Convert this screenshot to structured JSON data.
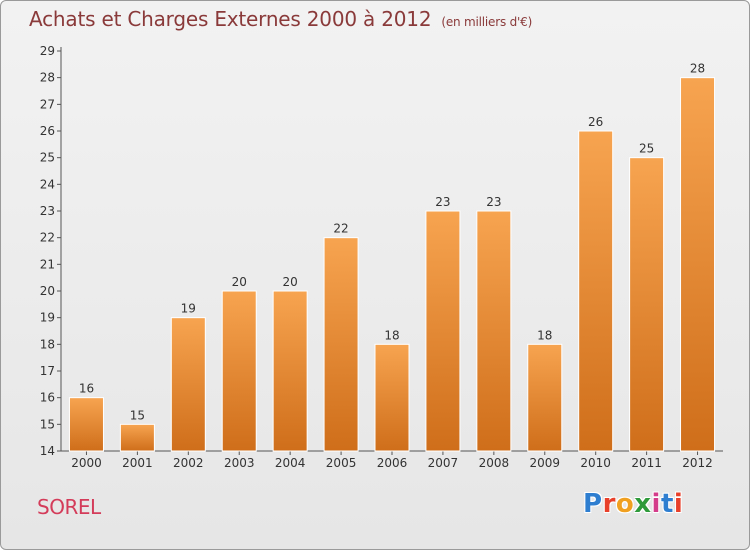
{
  "header": {
    "title": "Achats et Charges Externes 2000 à 2012",
    "unit": "(en milliers d'€)"
  },
  "footer": {
    "commune": "SOREL",
    "logo_letters": [
      "P",
      "r",
      "o",
      "x",
      "i",
      "t",
      "i"
    ],
    "logo_colors": [
      "#2e7ed0",
      "#e8402a",
      "#f0a020",
      "#2e9a3a",
      "#d43c8a",
      "#2e7ed0",
      "#e8402a"
    ]
  },
  "chart_data": {
    "type": "bar",
    "title": "Achats et Charges Externes 2000 à 2012",
    "subtitle": "(en milliers d'€)",
    "categories": [
      "2000",
      "2001",
      "2002",
      "2003",
      "2004",
      "2005",
      "2006",
      "2007",
      "2008",
      "2009",
      "2010",
      "2011",
      "2012"
    ],
    "values": [
      16,
      15,
      19,
      20,
      20,
      22,
      18,
      23,
      23,
      18,
      26,
      25,
      28
    ],
    "ylim": [
      14,
      29
    ],
    "yticks": [
      14,
      15,
      16,
      17,
      18,
      19,
      20,
      21,
      22,
      23,
      24,
      25,
      26,
      27,
      28,
      29
    ],
    "grid": false,
    "bar_color_light": "#f7a450",
    "bar_color_dark": "#cf6e1a"
  }
}
